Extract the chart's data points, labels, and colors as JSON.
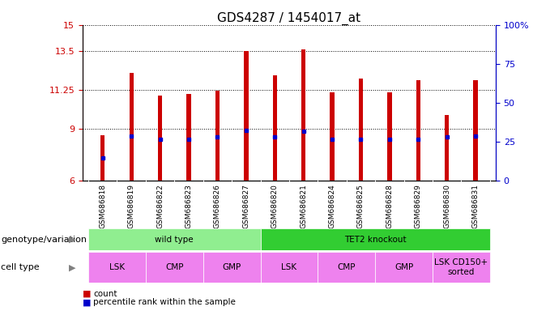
{
  "title": "GDS4287 / 1454017_at",
  "samples": [
    "GSM686818",
    "GSM686819",
    "GSM686822",
    "GSM686823",
    "GSM686826",
    "GSM686827",
    "GSM686820",
    "GSM686821",
    "GSM686824",
    "GSM686825",
    "GSM686828",
    "GSM686829",
    "GSM686830",
    "GSM686831"
  ],
  "bar_values": [
    8.6,
    12.2,
    10.9,
    11.0,
    11.2,
    13.5,
    12.1,
    13.6,
    11.1,
    11.9,
    11.1,
    11.8,
    9.8,
    11.8
  ],
  "percentile_values": [
    7.3,
    8.55,
    8.4,
    8.4,
    8.5,
    8.9,
    8.5,
    8.85,
    8.4,
    8.4,
    8.4,
    8.4,
    8.5,
    8.55
  ],
  "ymin": 6,
  "ymax": 15,
  "yticks": [
    6,
    9,
    11.25,
    13.5,
    15
  ],
  "ytick_labels": [
    "6",
    "9",
    "11.25",
    "13.5",
    "15"
  ],
  "right_yticks": [
    0,
    25,
    50,
    75,
    100
  ],
  "right_ytick_labels": [
    "0",
    "25",
    "50",
    "75",
    "100%"
  ],
  "bar_color": "#cc0000",
  "percentile_color": "#0000cc",
  "grid_color": "#000000",
  "background_color": "#ffffff",
  "sample_bg_color": "#d3d3d3",
  "genotype_labels": [
    {
      "label": "wild type",
      "start": 0,
      "end": 6,
      "color": "#90ee90"
    },
    {
      "label": "TET2 knockout",
      "start": 6,
      "end": 14,
      "color": "#32cd32"
    }
  ],
  "cell_type_labels": [
    {
      "label": "LSK",
      "start": 0,
      "end": 2,
      "color": "#ee82ee"
    },
    {
      "label": "CMP",
      "start": 2,
      "end": 4,
      "color": "#ee82ee"
    },
    {
      "label": "GMP",
      "start": 4,
      "end": 6,
      "color": "#ee82ee"
    },
    {
      "label": "LSK",
      "start": 6,
      "end": 8,
      "color": "#ee82ee"
    },
    {
      "label": "CMP",
      "start": 8,
      "end": 10,
      "color": "#ee82ee"
    },
    {
      "label": "GMP",
      "start": 10,
      "end": 12,
      "color": "#ee82ee"
    },
    {
      "label": "LSK CD150+\nsorted",
      "start": 12,
      "end": 14,
      "color": "#ee82ee"
    }
  ],
  "legend_count_color": "#cc0000",
  "legend_percentile_color": "#0000cc",
  "left_axis_color": "#cc0000",
  "right_axis_color": "#0000cc",
  "title_fontsize": 11,
  "tick_fontsize": 8,
  "sample_fontsize": 6.5,
  "label_fontsize": 7.5,
  "row_label_fontsize": 8
}
